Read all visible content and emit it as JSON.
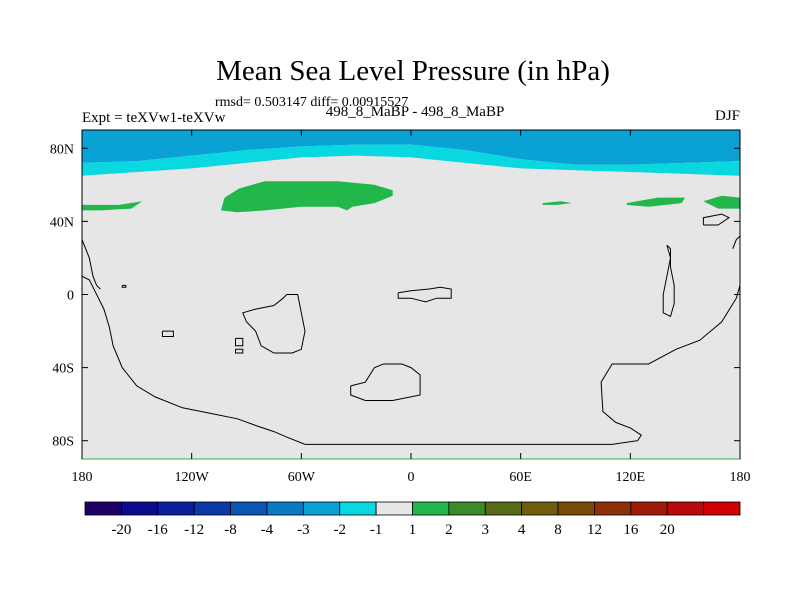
{
  "chart_data": {
    "type": "heatmap",
    "title": "Mean Sea Level Pressure (in hPa)",
    "subtitle": "rmsd= 0.503147 diff= 0.00915527",
    "left_label": "Expt = teXVw1-teXVw",
    "center_label": "498_8_MaBP - 498_8_MaBP",
    "right_label": "DJF",
    "xlim": [
      -180,
      180
    ],
    "ylim": [
      -90,
      90
    ],
    "x_ticks": [
      {
        "value": -180,
        "label": "180"
      },
      {
        "value": -120,
        "label": "120W"
      },
      {
        "value": -60,
        "label": "60W"
      },
      {
        "value": 0,
        "label": "0"
      },
      {
        "value": 60,
        "label": "60E"
      },
      {
        "value": 120,
        "label": "120E"
      },
      {
        "value": 180,
        "label": "180"
      }
    ],
    "y_ticks": [
      {
        "value": 80,
        "label": "80N"
      },
      {
        "value": 40,
        "label": "40N"
      },
      {
        "value": 0,
        "label": "0"
      },
      {
        "value": -40,
        "label": "40S"
      },
      {
        "value": -80,
        "label": "80S"
      }
    ],
    "colorbar": {
      "colors": [
        "#1c0066",
        "#0a0a8c",
        "#0b1f9c",
        "#0a3aa8",
        "#0b56b5",
        "#0a7ac4",
        "#0aa2d4",
        "#0ad8e0",
        "#e6e6e6",
        "#22b74a",
        "#3c8a2a",
        "#556b18",
        "#6e5d0e",
        "#7a4a08",
        "#8c3008",
        "#a01a0a",
        "#b80a0a",
        "#d00000"
      ],
      "labels": [
        "-20",
        "-16",
        "-12",
        "-8",
        "-4",
        "-3",
        "-2",
        "-1",
        "1",
        "2",
        "3",
        "4",
        "8",
        "12",
        "16",
        "20"
      ]
    },
    "regions": [
      {
        "name": "high-lat-dark-band",
        "level": "-3 to -2",
        "color": "#0aa2d4",
        "points": [
          [
            -180,
            90
          ],
          [
            180,
            90
          ],
          [
            180,
            73
          ],
          [
            150,
            72
          ],
          [
            120,
            71
          ],
          [
            90,
            71
          ],
          [
            60,
            74
          ],
          [
            30,
            79
          ],
          [
            0,
            82
          ],
          [
            -30,
            82
          ],
          [
            -60,
            81
          ],
          [
            -90,
            79
          ],
          [
            -120,
            76
          ],
          [
            -150,
            73
          ],
          [
            -180,
            72
          ]
        ]
      },
      {
        "name": "high-lat-light-band",
        "level": "-2 to -1",
        "color": "#0ad8e0",
        "points": [
          [
            -180,
            72
          ],
          [
            -150,
            73
          ],
          [
            -120,
            76
          ],
          [
            -90,
            79
          ],
          [
            -60,
            81
          ],
          [
            -30,
            82
          ],
          [
            0,
            82
          ],
          [
            30,
            79
          ],
          [
            60,
            74
          ],
          [
            90,
            71
          ],
          [
            120,
            71
          ],
          [
            150,
            72
          ],
          [
            180,
            73
          ],
          [
            180,
            65
          ],
          [
            150,
            66
          ],
          [
            120,
            67
          ],
          [
            90,
            68
          ],
          [
            60,
            69
          ],
          [
            40,
            71
          ],
          [
            20,
            73
          ],
          [
            0,
            75
          ],
          [
            -30,
            76
          ],
          [
            -60,
            75
          ],
          [
            -90,
            72
          ],
          [
            -120,
            69
          ],
          [
            -150,
            67
          ],
          [
            -180,
            65
          ]
        ]
      },
      {
        "name": "positive-anomaly-main",
        "level": "1 to 2",
        "color": "#22b74a",
        "points": [
          [
            -104,
            46
          ],
          [
            -102,
            53
          ],
          [
            -94,
            58
          ],
          [
            -80,
            62
          ],
          [
            -60,
            62
          ],
          [
            -40,
            62
          ],
          [
            -20,
            60
          ],
          [
            -10,
            57
          ],
          [
            -10,
            54
          ],
          [
            -20,
            50
          ],
          [
            -32,
            48
          ],
          [
            -35,
            46
          ],
          [
            -40,
            48
          ],
          [
            -60,
            48
          ],
          [
            -80,
            46
          ],
          [
            -95,
            45
          ],
          [
            -104,
            46
          ]
        ]
      },
      {
        "name": "positive-anomaly-west",
        "level": "1 to 2",
        "color": "#22b74a",
        "points": [
          [
            -180,
            49
          ],
          [
            -160,
            49
          ],
          [
            -147,
            51
          ],
          [
            -153,
            47
          ],
          [
            -170,
            46
          ],
          [
            -180,
            46
          ]
        ]
      },
      {
        "name": "positive-anomaly-east-small",
        "level": "1 to 2",
        "color": "#22b74a",
        "points": [
          [
            72,
            50
          ],
          [
            82,
            51
          ],
          [
            88,
            50
          ],
          [
            80,
            49
          ],
          [
            72,
            49
          ]
        ]
      },
      {
        "name": "positive-anomaly-east",
        "level": "1 to 2",
        "color": "#22b74a",
        "points": [
          [
            118,
            50
          ],
          [
            135,
            53
          ],
          [
            150,
            53
          ],
          [
            148,
            50
          ],
          [
            130,
            48
          ],
          [
            118,
            49
          ]
        ]
      },
      {
        "name": "positive-anomaly-dateline",
        "level": "1 to 2",
        "color": "#22b74a",
        "points": [
          [
            160,
            51
          ],
          [
            170,
            54
          ],
          [
            180,
            53
          ],
          [
            180,
            47
          ],
          [
            168,
            47
          ]
        ]
      }
    ],
    "coastlines": [
      [
        [
          -180,
          10
        ],
        [
          -176,
          8
        ],
        [
          -173,
          2
        ],
        [
          -168,
          -8
        ],
        [
          -165,
          -18
        ],
        [
          -163,
          -28
        ],
        [
          -158,
          -40
        ],
        [
          -150,
          -50
        ],
        [
          -140,
          -56
        ],
        [
          -125,
          -62
        ],
        [
          -110,
          -65
        ],
        [
          -95,
          -68
        ],
        [
          -84,
          -72
        ],
        [
          -75,
          -75
        ],
        [
          -68,
          -78
        ],
        [
          -58,
          -82
        ],
        [
          -30,
          -82
        ],
        [
          0,
          -82
        ],
        [
          40,
          -82
        ],
        [
          80,
          -82
        ],
        [
          110,
          -82
        ],
        [
          124,
          -80
        ],
        [
          126,
          -77
        ],
        [
          120,
          -73
        ],
        [
          112,
          -70
        ],
        [
          105,
          -64
        ],
        [
          104,
          -48
        ],
        [
          110,
          -38
        ],
        [
          130,
          -38
        ],
        [
          145,
          -30
        ],
        [
          158,
          -25
        ],
        [
          170,
          -15
        ],
        [
          178,
          -2
        ],
        [
          180,
          5
        ]
      ],
      [
        [
          -136,
          -20
        ],
        [
          -130,
          -20
        ],
        [
          -130,
          -23
        ],
        [
          -136,
          -23
        ],
        [
          -136,
          -20
        ]
      ],
      [
        [
          -96,
          -24
        ],
        [
          -92,
          -24
        ],
        [
          -92,
          -28
        ],
        [
          -96,
          -28
        ],
        [
          -96,
          -24
        ]
      ],
      [
        [
          -96,
          -30
        ],
        [
          -92,
          -30
        ],
        [
          -92,
          -32
        ],
        [
          -96,
          -32
        ],
        [
          -96,
          -30
        ]
      ],
      [
        [
          -68,
          0
        ],
        [
          -62,
          0
        ],
        [
          -60,
          -10
        ],
        [
          -58,
          -20
        ],
        [
          -60,
          -30
        ],
        [
          -65,
          -32
        ],
        [
          -75,
          -32
        ],
        [
          -82,
          -28
        ],
        [
          -85,
          -20
        ],
        [
          -90,
          -15
        ],
        [
          -92,
          -10
        ],
        [
          -85,
          -8
        ],
        [
          -75,
          -6
        ],
        [
          -70,
          -2
        ],
        [
          -68,
          0
        ]
      ],
      [
        [
          -7,
          1
        ],
        [
          0,
          2
        ],
        [
          10,
          3
        ],
        [
          16,
          4
        ],
        [
          22,
          3
        ],
        [
          22,
          -2
        ],
        [
          14,
          -2
        ],
        [
          8,
          -4
        ],
        [
          0,
          -2
        ],
        [
          -7,
          -2
        ],
        [
          -7,
          1
        ]
      ],
      [
        [
          -33,
          -50
        ],
        [
          -25,
          -48
        ],
        [
          -20,
          -40
        ],
        [
          -15,
          -38
        ],
        [
          -5,
          -38
        ],
        [
          0,
          -40
        ],
        [
          5,
          -44
        ],
        [
          5,
          -55
        ],
        [
          -10,
          -58
        ],
        [
          -25,
          -58
        ],
        [
          -33,
          -55
        ],
        [
          -33,
          -50
        ]
      ],
      [
        [
          140,
          27
        ],
        [
          142,
          20
        ],
        [
          140,
          10
        ],
        [
          138,
          0
        ],
        [
          138,
          -10
        ],
        [
          142,
          -12
        ],
        [
          144,
          -5
        ],
        [
          144,
          5
        ],
        [
          142,
          15
        ],
        [
          142,
          25
        ],
        [
          140,
          27
        ]
      ],
      [
        [
          160,
          38
        ],
        [
          168,
          38
        ],
        [
          174,
          42
        ],
        [
          170,
          44
        ],
        [
          160,
          42
        ],
        [
          160,
          38
        ]
      ],
      [
        [
          -180,
          30
        ],
        [
          -178,
          25
        ],
        [
          -176,
          20
        ],
        [
          -174,
          10
        ],
        [
          -172,
          5
        ],
        [
          -170,
          3
        ]
      ],
      [
        [
          -158,
          5
        ],
        [
          -156,
          5
        ],
        [
          -156,
          4
        ],
        [
          -158,
          4
        ],
        [
          -158,
          5
        ]
      ],
      [
        [
          176,
          25
        ],
        [
          178,
          30
        ],
        [
          180,
          32
        ]
      ]
    ]
  }
}
